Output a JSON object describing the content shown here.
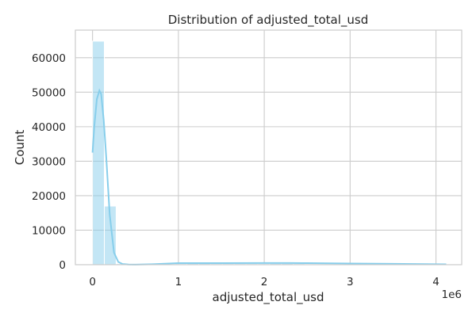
{
  "chart_data": {
    "type": "bar",
    "title": "Distribution of adjusted_total_usd",
    "xlabel": "adjusted_total_usd",
    "ylabel": "Count",
    "x_scale_label": "1e6",
    "xlim": [
      -0.2,
      4.3
    ],
    "ylim": [
      0,
      68000
    ],
    "x_ticks": [
      0,
      1,
      2,
      3,
      4
    ],
    "y_ticks": [
      0,
      10000,
      20000,
      30000,
      40000,
      50000,
      60000
    ],
    "grid": true,
    "bin_width": 0.1375,
    "bins": [
      {
        "start": 0.0,
        "count": 64800
      },
      {
        "start": 0.1375,
        "count": 17000
      },
      {
        "start": 0.275,
        "count": 300
      },
      {
        "start": 0.4125,
        "count": 150
      },
      {
        "start": 0.55,
        "count": 100
      },
      {
        "start": 0.6875,
        "count": 150
      },
      {
        "start": 0.825,
        "count": 200
      },
      {
        "start": 0.9625,
        "count": 300
      },
      {
        "start": 1.1,
        "count": 350
      },
      {
        "start": 1.2375,
        "count": 350
      },
      {
        "start": 1.375,
        "count": 300
      },
      {
        "start": 1.5125,
        "count": 300
      },
      {
        "start": 1.65,
        "count": 300
      },
      {
        "start": 1.7875,
        "count": 300
      },
      {
        "start": 1.925,
        "count": 300
      },
      {
        "start": 2.0625,
        "count": 350
      },
      {
        "start": 2.2,
        "count": 350
      },
      {
        "start": 2.3375,
        "count": 300
      },
      {
        "start": 2.475,
        "count": 250
      },
      {
        "start": 2.6125,
        "count": 250
      },
      {
        "start": 2.75,
        "count": 250
      },
      {
        "start": 2.8875,
        "count": 200
      },
      {
        "start": 3.025,
        "count": 200
      },
      {
        "start": 3.1625,
        "count": 200
      },
      {
        "start": 3.3,
        "count": 150
      },
      {
        "start": 3.4375,
        "count": 150
      },
      {
        "start": 3.575,
        "count": 150
      },
      {
        "start": 3.7125,
        "count": 100
      },
      {
        "start": 3.85,
        "count": 100
      },
      {
        "start": 3.9875,
        "count": 50
      }
    ],
    "kde": {
      "x": [
        0,
        0.02,
        0.05,
        0.08,
        0.1,
        0.13,
        0.16,
        0.2,
        0.25,
        0.3,
        0.35,
        0.42,
        0.5,
        0.7,
        1.0,
        1.5,
        2.0,
        2.3,
        2.5,
        3.0,
        3.5,
        4.0,
        4.12
      ],
      "y": [
        32500,
        40000,
        48000,
        50500,
        49500,
        42000,
        31000,
        14500,
        3500,
        800,
        200,
        60,
        40,
        150,
        450,
        450,
        500,
        500,
        450,
        350,
        250,
        150,
        100
      ]
    }
  }
}
